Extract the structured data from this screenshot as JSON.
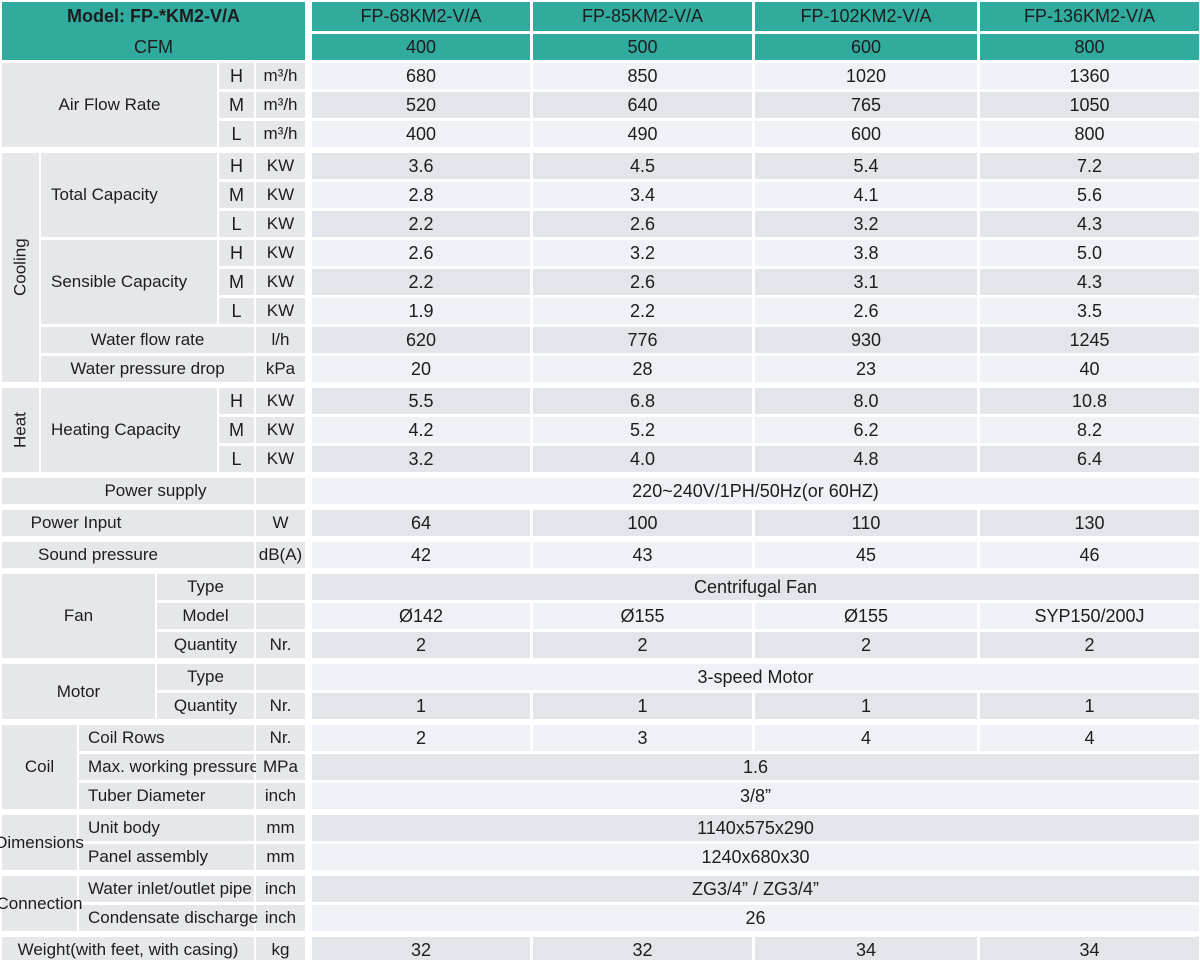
{
  "header": {
    "model_label": "Model: FP-*KM2-V/A",
    "cfm_label": "CFM",
    "models": [
      "FP-68KM2-V/A",
      "FP-85KM2-V/A",
      "FP-102KM2-V/A",
      "FP-136KM2-V/A"
    ],
    "cfm_values": [
      "400",
      "500",
      "600",
      "800"
    ],
    "accent_color": "#31ab9d"
  },
  "sections": {
    "air_flow": {
      "label": "Air Flow Rate",
      "rows": [
        {
          "speed": "H",
          "unit": "m³/h",
          "values": [
            "680",
            "850",
            "1020",
            "1360"
          ]
        },
        {
          "speed": "M",
          "unit": "m³/h",
          "values": [
            "520",
            "640",
            "765",
            "1050"
          ]
        },
        {
          "speed": "L",
          "unit": "m³/h",
          "values": [
            "400",
            "490",
            "600",
            "800"
          ]
        }
      ]
    },
    "cooling": {
      "label": "Cooling",
      "total_capacity": {
        "label": "Total Capacity",
        "rows": [
          {
            "speed": "H",
            "unit": "KW",
            "values": [
              "3.6",
              "4.5",
              "5.4",
              "7.2"
            ]
          },
          {
            "speed": "M",
            "unit": "KW",
            "values": [
              "2.8",
              "3.4",
              "4.1",
              "5.6"
            ]
          },
          {
            "speed": "L",
            "unit": "KW",
            "values": [
              "2.2",
              "2.6",
              "3.2",
              "4.3"
            ]
          }
        ]
      },
      "sensible_capacity": {
        "label": "Sensible Capacity",
        "rows": [
          {
            "speed": "H",
            "unit": "KW",
            "values": [
              "2.6",
              "3.2",
              "3.8",
              "5.0"
            ]
          },
          {
            "speed": "M",
            "unit": "KW",
            "values": [
              "2.2",
              "2.6",
              "3.1",
              "4.3"
            ]
          },
          {
            "speed": "L",
            "unit": "KW",
            "values": [
              "1.9",
              "2.2",
              "2.6",
              "3.5"
            ]
          }
        ]
      },
      "water_flow_rate": {
        "label": "Water flow rate",
        "unit": "l/h",
        "values": [
          "620",
          "776",
          "930",
          "1245"
        ]
      },
      "water_pressure_drop": {
        "label": "Water pressure drop",
        "unit": "kPa",
        "values": [
          "20",
          "28",
          "23",
          "40"
        ]
      }
    },
    "heat": {
      "label": "Heat",
      "heating_capacity": {
        "label": "Heating Capacity",
        "rows": [
          {
            "speed": "H",
            "unit": "KW",
            "values": [
              "5.5",
              "6.8",
              "8.0",
              "10.8"
            ]
          },
          {
            "speed": "M",
            "unit": "KW",
            "values": [
              "4.2",
              "5.2",
              "6.2",
              "8.2"
            ]
          },
          {
            "speed": "L",
            "unit": "KW",
            "values": [
              "3.2",
              "4.0",
              "4.8",
              "6.4"
            ]
          }
        ]
      }
    },
    "power_supply": {
      "label": "Power supply",
      "unit": "",
      "value": "220~240V/1PH/50Hz(or 60HZ)"
    },
    "power_input": {
      "label": "Power Input",
      "unit": "W",
      "values": [
        "64",
        "100",
        "110",
        "130"
      ]
    },
    "sound_pressure": {
      "label": "Sound pressure",
      "unit": "dB(A)",
      "values": [
        "42",
        "43",
        "45",
        "46"
      ]
    },
    "fan": {
      "label": "Fan",
      "type": {
        "label": "Type",
        "unit": "",
        "value": "Centrifugal Fan"
      },
      "model": {
        "label": "Model",
        "unit": "",
        "values": [
          "Ø142",
          "Ø155",
          "Ø155",
          "SYP150/200J"
        ]
      },
      "quantity": {
        "label": "Quantity",
        "unit": "Nr.",
        "values": [
          "2",
          "2",
          "2",
          "2"
        ]
      }
    },
    "motor": {
      "label": "Motor",
      "type": {
        "label": "Type",
        "unit": "",
        "value": "3-speed Motor"
      },
      "quantity": {
        "label": "Quantity",
        "unit": "Nr.",
        "values": [
          "1",
          "1",
          "1",
          "1"
        ]
      }
    },
    "coil": {
      "label": "Coil",
      "coil_rows": {
        "label": "Coil Rows",
        "unit": "Nr.",
        "values": [
          "2",
          "3",
          "4",
          "4"
        ]
      },
      "max_working_pressure": {
        "label": "Max. working pressure",
        "unit": "MPa",
        "value": "1.6"
      },
      "tuber_diameter": {
        "label": "Tuber Diameter",
        "unit": "inch",
        "value": "3/8”"
      }
    },
    "dimensions": {
      "label": "Dimensions",
      "unit_body": {
        "label": "Unit body",
        "unit": "mm",
        "value": "1140x575x290"
      },
      "panel_assembly": {
        "label": "Panel assembly",
        "unit": "mm",
        "value": "1240x680x30"
      }
    },
    "connection": {
      "label": "Connection",
      "water_pipe": {
        "label": "Water inlet/outlet pipe",
        "unit": "inch",
        "value": "ZG3/4” / ZG3/4”"
      },
      "condensate": {
        "label": "Condensate discharge",
        "unit": "inch",
        "value": "26"
      }
    },
    "weight": {
      "label": "Weight(with feet, with casing)",
      "unit": "kg",
      "values": [
        "32",
        "32",
        "34",
        "34"
      ]
    }
  }
}
